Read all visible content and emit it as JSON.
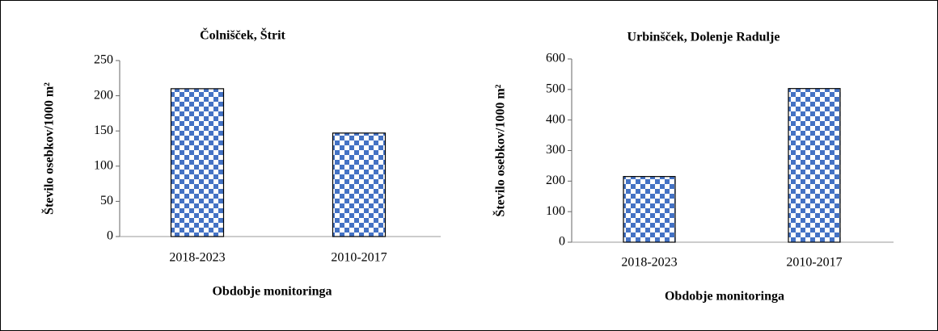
{
  "chart_data": [
    {
      "type": "bar",
      "title": "Čolnišček, Štrit",
      "x_label": "Obdobje monitoringa",
      "y_label": "Število osebkov/1000 m²",
      "categories": [
        "2018-2023",
        "2010-2017"
      ],
      "values": [
        210,
        147
      ],
      "color": "#4472c4",
      "ylim": [
        0,
        250
      ],
      "yticks": [
        0,
        50,
        100,
        150,
        200,
        250
      ]
    },
    {
      "type": "bar",
      "title": "Urbinšček, Dolenje Radulje",
      "x_label": "Obdobje monitoringa",
      "y_label": "Število osebkov/1000 m²",
      "categories": [
        "2018-2023",
        "2010-2017"
      ],
      "values": [
        215,
        503
      ],
      "color": "#4472c4",
      "ylim": [
        0,
        600
      ],
      "yticks": [
        0,
        100,
        200,
        300,
        400,
        500,
        600
      ]
    }
  ]
}
